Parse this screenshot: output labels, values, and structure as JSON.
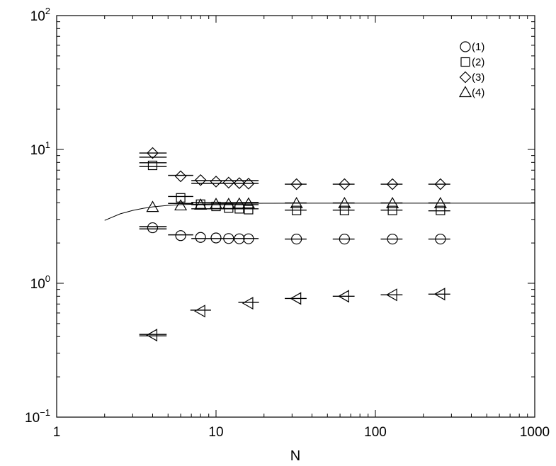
{
  "chart_data": {
    "type": "scatter",
    "title": "",
    "xlabel": "N",
    "ylabel": "",
    "x_scale": "log",
    "y_scale": "log",
    "xlim": [
      1,
      1000
    ],
    "ylim": [
      0.1,
      100
    ],
    "x_ticks": [
      {
        "value": 1,
        "label": "1"
      },
      {
        "value": 10,
        "label": "10"
      },
      {
        "value": 100,
        "label": "100"
      },
      {
        "value": 1000,
        "label": "1000"
      }
    ],
    "y_ticks": [
      {
        "value": 0.1,
        "base": "10",
        "exp": "−1"
      },
      {
        "value": 1,
        "base": "10",
        "exp": "0"
      },
      {
        "value": 10,
        "base": "10",
        "exp": "1"
      },
      {
        "value": 100,
        "base": "10",
        "exp": "2"
      }
    ],
    "legend_position": "top-right",
    "series": [
      {
        "name": "(1)",
        "marker": "circle",
        "in_legend": true,
        "x": [
          4,
          6,
          8,
          10,
          12,
          14,
          16,
          32,
          64,
          128,
          256
        ],
        "y": [
          2.6,
          2.27,
          2.2,
          2.18,
          2.16,
          2.15,
          2.15,
          2.14,
          2.14,
          2.14,
          2.14
        ]
      },
      {
        "name": "(2)",
        "marker": "square",
        "in_legend": true,
        "x": [
          4,
          6,
          8,
          10,
          12,
          14,
          16,
          32,
          64,
          128,
          256
        ],
        "y": [
          7.6,
          4.35,
          3.9,
          3.75,
          3.65,
          3.6,
          3.55,
          3.5,
          3.5,
          3.5,
          3.5
        ]
      },
      {
        "name": "(3)",
        "marker": "diamond",
        "in_legend": true,
        "x": [
          4,
          6,
          8,
          10,
          12,
          14,
          16,
          32,
          64,
          128,
          256
        ],
        "y": [
          9.4,
          6.3,
          5.9,
          5.75,
          5.65,
          5.6,
          5.55,
          5.5,
          5.5,
          5.5,
          5.5
        ]
      },
      {
        "name": "(4)",
        "marker": "triangle-up",
        "in_legend": true,
        "x": [
          4,
          6,
          8,
          10,
          12,
          14,
          16,
          32,
          64,
          128,
          256
        ],
        "y": [
          3.7,
          3.8,
          3.85,
          3.9,
          3.9,
          3.92,
          3.93,
          3.95,
          3.95,
          3.95,
          3.95
        ]
      },
      {
        "name": "",
        "marker": "triangle-left",
        "in_legend": false,
        "x": [
          4,
          8,
          16,
          32,
          64,
          128,
          256
        ],
        "y": [
          0.41,
          0.62,
          0.71,
          0.77,
          0.8,
          0.82,
          0.83
        ]
      }
    ],
    "error_bars": {
      "note_x_extent": "horizontal segments",
      "segments": [
        {
          "y": 9.4,
          "x0": 3.3,
          "x1": 4.9
        },
        {
          "y": 8.75,
          "x0": 3.3,
          "x1": 4.9
        },
        {
          "y": 7.95,
          "x0": 3.3,
          "x1": 4.9
        },
        {
          "y": 7.45,
          "x0": 3.3,
          "x1": 4.9
        },
        {
          "y": 2.65,
          "x0": 3.3,
          "x1": 4.9
        },
        {
          "y": 2.55,
          "x0": 3.3,
          "x1": 4.9
        },
        {
          "y": 0.415,
          "x0": 3.3,
          "x1": 4.9
        },
        {
          "y": 0.405,
          "x0": 3.3,
          "x1": 4.9
        },
        {
          "y": 6.4,
          "x0": 5.0,
          "x1": 7.2
        },
        {
          "y": 4.45,
          "x0": 5.0,
          "x1": 7.2
        },
        {
          "y": 3.95,
          "x0": 5.0,
          "x1": 7.2
        },
        {
          "y": 2.3,
          "x0": 5.0,
          "x1": 7.2
        },
        {
          "y": 5.85,
          "x0": 7.0,
          "x1": 18.5
        },
        {
          "y": 5.58,
          "x0": 7.0,
          "x1": 18.5
        },
        {
          "y": 4.02,
          "x0": 7.0,
          "x1": 18.5
        },
        {
          "y": 3.87,
          "x0": 7.0,
          "x1": 18.5
        },
        {
          "y": 3.6,
          "x0": 7.0,
          "x1": 18.5
        },
        {
          "y": 2.16,
          "x0": 7.0,
          "x1": 18.5
        },
        {
          "y": 0.63,
          "x0": 6.9,
          "x1": 9.3
        },
        {
          "y": 0.72,
          "x0": 13.8,
          "x1": 18.6
        },
        {
          "y": 5.5,
          "x0": 27,
          "x1": 37
        },
        {
          "y": 3.98,
          "x0": 27,
          "x1": 37
        },
        {
          "y": 3.52,
          "x0": 27,
          "x1": 37
        },
        {
          "y": 2.14,
          "x0": 27,
          "x1": 37
        },
        {
          "y": 0.77,
          "x0": 27,
          "x1": 37
        },
        {
          "y": 5.5,
          "x0": 54,
          "x1": 74
        },
        {
          "y": 3.98,
          "x0": 54,
          "x1": 74
        },
        {
          "y": 3.52,
          "x0": 54,
          "x1": 74
        },
        {
          "y": 2.14,
          "x0": 54,
          "x1": 74
        },
        {
          "y": 0.8,
          "x0": 54,
          "x1": 74
        },
        {
          "y": 5.5,
          "x0": 108,
          "x1": 148
        },
        {
          "y": 3.98,
          "x0": 108,
          "x1": 148
        },
        {
          "y": 3.52,
          "x0": 108,
          "x1": 148
        },
        {
          "y": 2.14,
          "x0": 108,
          "x1": 148
        },
        {
          "y": 0.82,
          "x0": 108,
          "x1": 148
        },
        {
          "y": 5.5,
          "x0": 215,
          "x1": 295
        },
        {
          "y": 3.98,
          "x0": 215,
          "x1": 295
        },
        {
          "y": 3.48,
          "x0": 215,
          "x1": 295
        },
        {
          "y": 2.14,
          "x0": 215,
          "x1": 295
        },
        {
          "y": 0.83,
          "x0": 215,
          "x1": 295
        }
      ]
    },
    "fit_curve": {
      "x": [
        2,
        2.5,
        3,
        3.5,
        4,
        5,
        6,
        8,
        10,
        15,
        20,
        40,
        100,
        300,
        1000
      ],
      "y": [
        2.95,
        3.3,
        3.5,
        3.63,
        3.72,
        3.82,
        3.87,
        3.91,
        3.93,
        3.95,
        3.96,
        3.97,
        3.97,
        3.97,
        3.97
      ]
    }
  }
}
